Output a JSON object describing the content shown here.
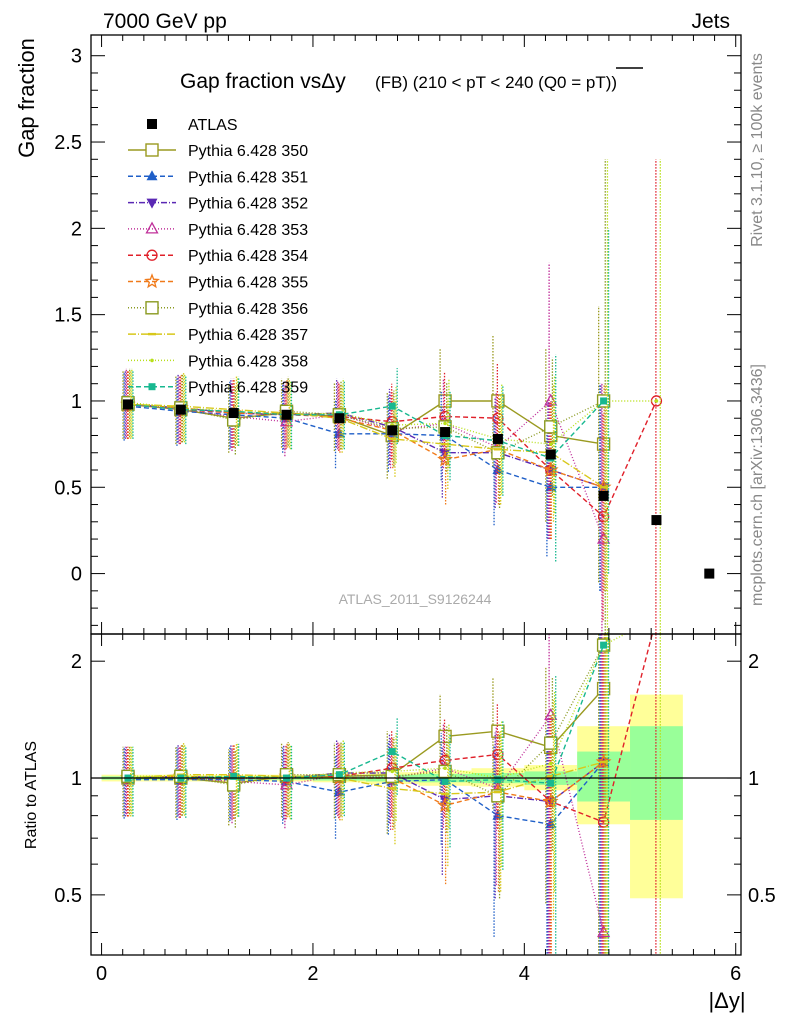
{
  "header": {
    "left": "7000 GeV pp",
    "right": "Jets"
  },
  "side_labels": {
    "rivet": "Rivet 3.1.10, ≥ 100k events",
    "mcplots": "mcplots.cern.ch [arXiv:1306.3436]"
  },
  "chart_data": {
    "type": "scatter",
    "title_main": "Gap fraction vsΔy",
    "title_sub": "(FB) (210 < pT < 240 (Q0 = pT))",
    "ylabel": "Gap fraction",
    "xlabel": "|Δy|",
    "ratio_ylabel": "Ratio to ATLAS",
    "watermark": "ATLAS_2011_S9126244",
    "xlim": [
      -0.1,
      6.05
    ],
    "ylim": [
      -0.35,
      3.12
    ],
    "ratio_ylim": [
      0.35,
      2.35
    ],
    "x_ticks": [
      0,
      2,
      4,
      6
    ],
    "y_ticks": [
      0,
      0.5,
      1,
      1.5,
      2,
      2.5,
      3
    ],
    "y_tick_labels": [
      "0",
      "0.5",
      "1",
      "1.5",
      "2",
      "2.5",
      "3"
    ],
    "ratio_ticks": [
      0.5,
      1,
      2
    ],
    "ratio_tick_labels": [
      "0.5",
      "1",
      "2"
    ],
    "legend_position": "top-left",
    "x": [
      0.25,
      0.75,
      1.25,
      1.75,
      2.25,
      2.75,
      3.25,
      3.75,
      4.25,
      4.75,
      5.25,
      5.75
    ],
    "data": {
      "name": "ATLAS",
      "values": [
        0.98,
        0.95,
        0.93,
        0.92,
        0.9,
        0.83,
        0.82,
        0.78,
        0.69,
        0.45,
        0.31,
        0.0
      ],
      "ratio_bands": [
        {
          "x0": 0.0,
          "x1": 0.5,
          "inner": [
            0.99,
            1.01
          ],
          "outer": [
            0.98,
            1.02
          ]
        },
        {
          "x0": 0.5,
          "x1": 1.0,
          "inner": [
            0.99,
            1.01
          ],
          "outer": [
            0.98,
            1.02
          ]
        },
        {
          "x0": 1.0,
          "x1": 1.5,
          "inner": [
            0.99,
            1.01
          ],
          "outer": [
            0.98,
            1.02
          ]
        },
        {
          "x0": 1.5,
          "x1": 2.0,
          "inner": [
            0.99,
            1.01
          ],
          "outer": [
            0.98,
            1.02
          ]
        },
        {
          "x0": 2.0,
          "x1": 2.5,
          "inner": [
            0.985,
            1.015
          ],
          "outer": [
            0.975,
            1.025
          ]
        },
        {
          "x0": 2.5,
          "x1": 3.0,
          "inner": [
            0.98,
            1.02
          ],
          "outer": [
            0.965,
            1.035
          ]
        },
        {
          "x0": 3.0,
          "x1": 3.5,
          "inner": [
            0.975,
            1.025
          ],
          "outer": [
            0.955,
            1.045
          ]
        },
        {
          "x0": 3.5,
          "x1": 4.0,
          "inner": [
            0.97,
            1.03
          ],
          "outer": [
            0.95,
            1.06
          ]
        },
        {
          "x0": 4.0,
          "x1": 4.5,
          "inner": [
            0.96,
            1.04
          ],
          "outer": [
            0.93,
            1.08
          ]
        },
        {
          "x0": 4.5,
          "x1": 5.0,
          "inner": [
            0.87,
            1.17
          ],
          "outer": [
            0.76,
            1.36
          ]
        },
        {
          "x0": 5.0,
          "x1": 5.5,
          "inner": [
            0.78,
            1.36
          ],
          "outer": [
            0.49,
            1.64
          ]
        }
      ]
    },
    "series": [
      {
        "name": "Pythia 6.428 350",
        "color": "#9a9a20",
        "dash": "",
        "marker": "square-open",
        "values": [
          0.98,
          0.95,
          0.9,
          0.93,
          0.91,
          0.8,
          1.0,
          1.0,
          0.8,
          0.75
        ],
        "err": [
          0.2,
          0.2,
          0.2,
          0.2,
          0.2,
          0.25,
          0.3,
          0.38,
          0.5,
          0.8
        ],
        "ratio": [
          1.0,
          1.0,
          0.97,
          1.01,
          1.01,
          1.02,
          1.28,
          1.32,
          1.2,
          1.7
        ]
      },
      {
        "name": "Pythia 6.428 351",
        "color": "#1f5fc8",
        "dash": "5,3",
        "marker": "triangle-up",
        "values": [
          0.97,
          0.94,
          0.92,
          0.9,
          0.81,
          0.81,
          0.8,
          0.6,
          0.5,
          0.5
        ],
        "err": [
          0.2,
          0.2,
          0.2,
          0.2,
          0.2,
          0.22,
          0.26,
          0.32,
          0.4,
          0.6
        ],
        "ratio": [
          0.99,
          0.99,
          0.99,
          0.98,
          0.92,
          0.98,
          0.99,
          0.8,
          0.76,
          1.1
        ]
      },
      {
        "name": "Pythia 6.428 352",
        "color": "#5a28b4",
        "dash": "6,2,1,2",
        "marker": "triangle-down",
        "values": [
          0.98,
          0.96,
          0.93,
          0.92,
          0.93,
          0.85,
          0.7,
          0.7,
          0.6,
          0.5
        ],
        "err": [
          0.2,
          0.2,
          0.2,
          0.2,
          0.2,
          0.22,
          0.26,
          0.32,
          0.4,
          0.6
        ],
        "ratio": [
          1.0,
          1.01,
          1.0,
          1.0,
          1.03,
          1.03,
          0.88,
          0.9,
          0.87,
          1.1
        ]
      },
      {
        "name": "Pythia 6.428 353",
        "color": "#c0309a",
        "dash": "1,2",
        "marker": "triangle-up-open",
        "values": [
          0.99,
          0.95,
          0.91,
          0.88,
          0.92,
          0.83,
          0.87,
          0.73,
          1.0,
          0.2
        ],
        "err": [
          0.2,
          0.2,
          0.2,
          0.2,
          0.2,
          0.22,
          0.26,
          0.32,
          0.8,
          0.9
        ],
        "ratio": [
          1.01,
          1.0,
          0.98,
          0.96,
          1.02,
          1.0,
          1.06,
          0.94,
          1.45,
          0.4
        ]
      },
      {
        "name": "Pythia 6.428 354",
        "color": "#e0202a",
        "dash": "5,3",
        "marker": "circle-open",
        "values": [
          0.98,
          0.95,
          0.93,
          0.92,
          0.91,
          0.88,
          0.91,
          0.9,
          0.6,
          0.33,
          1.0
        ],
        "err": [
          0.2,
          0.2,
          0.2,
          0.2,
          0.2,
          0.22,
          0.26,
          0.32,
          0.4,
          0.6,
          1.4
        ],
        "ratio": [
          1.0,
          1.0,
          1.0,
          1.0,
          1.01,
          1.06,
          1.11,
          1.15,
          0.87,
          0.77,
          3.2
        ]
      },
      {
        "name": "Pythia 6.428 355",
        "color": "#f07a1a",
        "dash": "5,3",
        "marker": "star",
        "values": [
          0.98,
          0.96,
          0.93,
          0.93,
          0.9,
          0.83,
          0.66,
          0.72,
          0.6,
          0.5
        ],
        "err": [
          0.2,
          0.2,
          0.2,
          0.2,
          0.2,
          0.22,
          0.26,
          0.32,
          0.4,
          0.6
        ],
        "ratio": [
          1.0,
          1.01,
          1.0,
          1.01,
          1.0,
          1.0,
          0.85,
          0.92,
          0.87,
          1.1
        ]
      },
      {
        "name": "Pythia 6.428 356",
        "color": "#8a9a20",
        "dash": "1,2",
        "marker": "square-open",
        "values": [
          0.99,
          0.96,
          0.89,
          0.94,
          0.92,
          0.84,
          0.85,
          0.7,
          0.85,
          1.0
        ],
        "err": [
          0.2,
          0.2,
          0.2,
          0.2,
          0.2,
          0.22,
          0.26,
          0.32,
          0.4,
          1.4
        ],
        "ratio": [
          1.01,
          1.01,
          0.96,
          1.02,
          1.02,
          1.01,
          1.04,
          0.9,
          1.23,
          2.2
        ]
      },
      {
        "name": "Pythia 6.428 357",
        "color": "#d8c81a",
        "dash": "8,2,1,2",
        "marker": "dash",
        "values": [
          0.98,
          0.97,
          0.95,
          0.93,
          0.9,
          0.78,
          0.75,
          0.72,
          0.7,
          0.5
        ],
        "err": [
          0.2,
          0.2,
          0.2,
          0.2,
          0.2,
          0.22,
          0.26,
          0.32,
          0.4,
          0.6
        ],
        "ratio": [
          1.0,
          1.02,
          1.02,
          1.01,
          1.0,
          0.94,
          0.91,
          0.92,
          1.01,
          1.1
        ]
      },
      {
        "name": "Pythia 6.428 358",
        "color": "#b8e01a",
        "dash": "1,2",
        "marker": "dot",
        "values": [
          0.99,
          0.96,
          0.94,
          0.92,
          0.93,
          0.86,
          0.87,
          0.78,
          0.75,
          1.0,
          1.0
        ],
        "err": [
          0.2,
          0.2,
          0.2,
          0.2,
          0.2,
          0.22,
          0.26,
          0.32,
          0.4,
          1.4,
          1.4
        ],
        "ratio": [
          1.01,
          1.01,
          1.01,
          1.0,
          1.03,
          1.04,
          1.06,
          1.0,
          1.09,
          2.2,
          3.2
        ]
      },
      {
        "name": "Pythia 6.428 359",
        "color": "#18b890",
        "dash": "5,3",
        "marker": "square",
        "values": [
          0.98,
          0.95,
          0.94,
          0.92,
          0.92,
          0.97,
          0.8,
          0.77,
          0.67,
          1.0
        ],
        "err": [
          0.2,
          0.2,
          0.2,
          0.2,
          0.2,
          0.22,
          0.26,
          0.32,
          0.6,
          1.0
        ],
        "ratio": [
          1.0,
          1.0,
          1.01,
          1.0,
          1.02,
          1.17,
          0.98,
          0.99,
          0.97,
          2.2
        ]
      }
    ]
  }
}
